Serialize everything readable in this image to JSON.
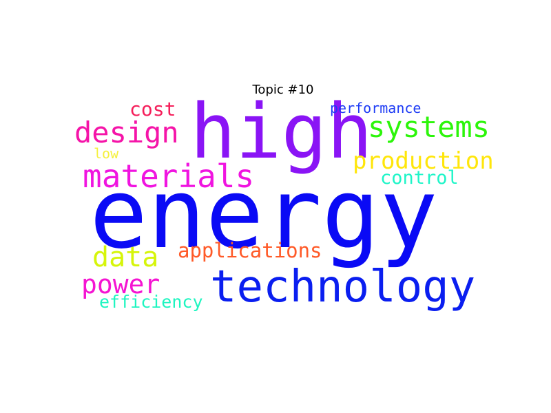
{
  "title": "Topic #10",
  "words": [
    {
      "text": "energy",
      "color": "#0a0af5"
    },
    {
      "text": "high",
      "color": "#8a14f5"
    },
    {
      "text": "technology",
      "color": "#0a1ef0"
    },
    {
      "text": "materials",
      "color": "#f014e0"
    },
    {
      "text": "design",
      "color": "#f514a8"
    },
    {
      "text": "systems",
      "color": "#2cf50a"
    },
    {
      "text": "production",
      "color": "#ffe60a"
    },
    {
      "text": "power",
      "color": "#f514d2"
    },
    {
      "text": "data",
      "color": "#d6f50a"
    },
    {
      "text": "applications",
      "color": "#ff5a28"
    },
    {
      "text": "cost",
      "color": "#f51e5a"
    },
    {
      "text": "control",
      "color": "#1ef5c8"
    },
    {
      "text": "efficiency",
      "color": "#1ef5c0"
    },
    {
      "text": "performance",
      "color": "#1e3cf5"
    },
    {
      "text": "low",
      "color": "#f5f03c"
    }
  ]
}
